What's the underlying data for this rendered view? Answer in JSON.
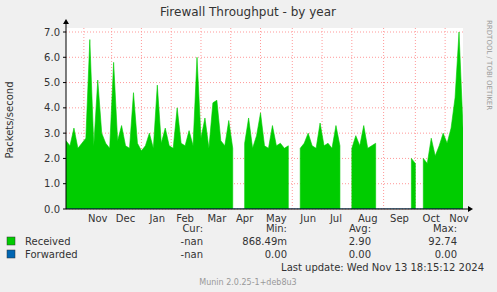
{
  "chart_data": {
    "type": "area",
    "title": "Firewall Throughput - by year",
    "y_label": "Packets/second",
    "watermark": "RRDTOOL / TOBI OETIKER",
    "footer": "Last update: Wed Nov 13 18:15:12 2024",
    "version": "Munin 2.0.25-1+deb8u3",
    "stats_headers": [
      "Cur:",
      "Min:",
      "Avg:",
      "Max:"
    ],
    "categories": [
      null,
      null,
      null,
      null,
      null,
      null,
      null,
      null,
      "Nov",
      null,
      null,
      null,
      null,
      null,
      null,
      "Dec",
      null,
      null,
      null,
      null,
      null,
      null,
      null,
      "Jan",
      null,
      null,
      null,
      null,
      null,
      null,
      "Feb",
      null,
      null,
      null,
      null,
      null,
      null,
      null,
      "Mar",
      null,
      null,
      null,
      null,
      null,
      null,
      "Apr",
      null,
      null,
      null,
      null,
      null,
      null,
      null,
      "May",
      null,
      null,
      null,
      null,
      null,
      null,
      null,
      "Jun",
      null,
      null,
      null,
      null,
      null,
      null,
      "Jul",
      null,
      null,
      null,
      null,
      null,
      null,
      null,
      "Aug",
      null,
      null,
      null,
      null,
      null,
      null,
      null,
      "Sep",
      null,
      null,
      null,
      null,
      null,
      null,
      null,
      "Oct",
      null,
      null,
      null,
      null,
      null,
      null,
      "Nov",
      null
    ],
    "series": [
      {
        "name": "Received",
        "color": "#00CC00",
        "type": "area",
        "stats": [
          "-nan",
          "868.49m",
          "2.90",
          "92.74"
        ],
        "values": [
          2.7,
          2.5,
          3.2,
          2.4,
          2.6,
          2.8,
          6.7,
          2.5,
          5.1,
          3.0,
          2.6,
          2.4,
          5.8,
          2.7,
          3.3,
          2.5,
          2.4,
          4.6,
          2.6,
          2.3,
          2.5,
          3.0,
          2.4,
          4.9,
          2.6,
          3.2,
          2.5,
          2.4,
          4.0,
          2.6,
          2.5,
          3.1,
          2.5,
          6.0,
          2.8,
          3.6,
          2.4,
          4.2,
          4.3,
          2.7,
          2.5,
          3.5,
          2.4,
          null,
          null,
          2.6,
          3.6,
          2.4,
          2.9,
          3.8,
          2.5,
          2.4,
          3.3,
          2.5,
          2.6,
          2.4,
          2.5,
          null,
          null,
          2.4,
          2.6,
          3.0,
          2.5,
          2.4,
          3.4,
          2.5,
          2.6,
          2.4,
          3.3,
          2.5,
          null,
          null,
          2.4,
          2.9,
          2.5,
          3.3,
          2.4,
          2.5,
          2.6,
          null,
          null,
          null,
          null,
          null,
          null,
          null,
          null,
          2.0,
          1.8,
          null,
          2.0,
          1.8,
          2.8,
          2.1,
          2.5,
          3.0,
          2.6,
          3.2,
          4.4,
          7.0,
          3.2
        ]
      },
      {
        "name": "Forwarded",
        "color": "#0066B3",
        "type": "line",
        "stats": [
          "-nan",
          "0.00",
          "0.00",
          "0.00"
        ],
        "values": [
          0,
          0,
          0,
          0,
          0,
          0,
          0,
          0,
          0,
          0,
          0,
          0,
          0,
          0,
          0,
          0,
          0,
          0,
          0,
          0,
          0,
          0,
          0,
          0,
          0,
          0,
          0,
          0,
          0,
          0,
          0,
          0,
          0,
          0,
          0,
          0,
          0,
          0,
          0,
          0,
          0,
          0,
          0,
          0,
          0,
          0,
          0,
          0,
          0,
          0,
          0,
          0,
          0,
          0,
          0,
          0,
          0,
          0,
          0,
          0,
          0,
          0,
          0,
          0,
          0,
          0,
          0,
          0,
          0,
          0,
          0,
          0,
          0,
          0,
          0,
          0,
          0,
          0,
          0,
          0,
          0,
          0,
          0,
          0,
          0,
          0,
          0,
          0,
          0,
          0,
          0,
          0,
          0,
          0,
          0,
          0,
          0,
          0,
          0,
          0,
          0
        ]
      }
    ],
    "ylim": [
      0,
      7
    ],
    "yticks": [
      {
        "value": 0,
        "label": "0.0"
      },
      {
        "value": 1,
        "label": "1.0"
      },
      {
        "value": 2,
        "label": "2.0"
      },
      {
        "value": 3,
        "label": "3.0"
      },
      {
        "value": 4,
        "label": "4.0"
      },
      {
        "value": 5,
        "label": "5.0"
      },
      {
        "value": 6,
        "label": "6.0"
      },
      {
        "value": 7,
        "label": "7.0"
      }
    ],
    "grid": true,
    "legend": "bottom-left"
  }
}
